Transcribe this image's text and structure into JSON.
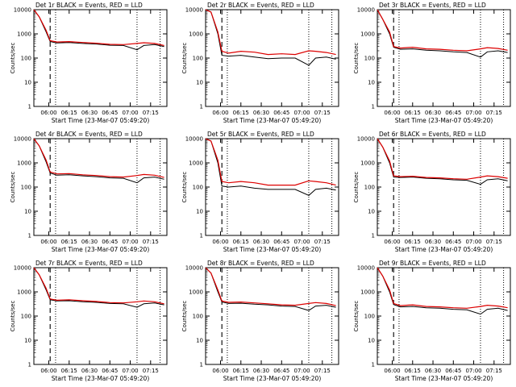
{
  "figure": {
    "xlabel": "Start Time (23-Mar-07 05:49:20)",
    "ylabel": "Counts/sec"
  },
  "colors": {
    "events": "#000000",
    "lld": "#dd0000"
  },
  "shared_axes": {
    "x_ticks": [
      "06:00",
      "06:15",
      "06:30",
      "06:45",
      "07:00",
      "07:15"
    ],
    "y_ticks": [
      "1",
      "10",
      "100",
      "1000",
      "10000"
    ],
    "ylim": [
      1,
      10000
    ],
    "y_scale": "log"
  },
  "chart_data": [
    {
      "type": "line",
      "title": "Det 1r BLACK = Events, RED = LLD",
      "x": [
        "05:49",
        "05:53",
        "05:58",
        "06:01",
        "06:06",
        "06:15",
        "06:25",
        "06:35",
        "06:45",
        "06:55",
        "07:05",
        "07:10",
        "07:18",
        "07:25"
      ],
      "series": [
        {
          "name": "Events",
          "values": [
            10000,
            5000,
            1200,
            480,
            420,
            440,
            400,
            380,
            340,
            330,
            220,
            330,
            360,
            300
          ]
        },
        {
          "name": "LLD",
          "values": [
            10000,
            5000,
            1400,
            520,
            460,
            480,
            440,
            410,
            370,
            360,
            400,
            430,
            400,
            330
          ]
        }
      ]
    },
    {
      "type": "line",
      "title": "Det 2r BLACK = Events, RED = LLD",
      "x": [
        "05:49",
        "05:53",
        "05:58",
        "06:01",
        "06:06",
        "06:15",
        "06:25",
        "06:35",
        "06:45",
        "06:55",
        "07:05",
        "07:10",
        "07:18",
        "07:25"
      ],
      "series": [
        {
          "name": "Events",
          "values": [
            10000,
            8000,
            1000,
            130,
            120,
            130,
            110,
            95,
            100,
            100,
            50,
            100,
            110,
            90
          ]
        },
        {
          "name": "LLD",
          "values": [
            10000,
            8000,
            1200,
            190,
            160,
            190,
            175,
            140,
            150,
            140,
            200,
            190,
            170,
            140
          ]
        }
      ]
    },
    {
      "type": "line",
      "title": "Det 3r BLACK = Events, RED = LLD",
      "x": [
        "05:49",
        "05:53",
        "05:58",
        "06:01",
        "06:06",
        "06:15",
        "06:25",
        "06:35",
        "06:45",
        "06:55",
        "07:05",
        "07:10",
        "07:18",
        "07:25"
      ],
      "series": [
        {
          "name": "Events",
          "values": [
            10000,
            4000,
            1000,
            280,
            230,
            240,
            210,
            200,
            180,
            170,
            110,
            180,
            200,
            170
          ]
        },
        {
          "name": "LLD",
          "values": [
            10000,
            4000,
            1200,
            300,
            260,
            280,
            240,
            230,
            210,
            200,
            240,
            270,
            250,
            210
          ]
        }
      ]
    },
    {
      "type": "line",
      "title": "Det 4r BLACK = Events, RED = LLD",
      "x": [
        "05:49",
        "05:53",
        "05:58",
        "06:01",
        "06:06",
        "06:15",
        "06:25",
        "06:35",
        "06:45",
        "06:55",
        "07:05",
        "07:10",
        "07:18",
        "07:25"
      ],
      "series": [
        {
          "name": "Events",
          "values": [
            10000,
            5000,
            1100,
            380,
            310,
            320,
            290,
            270,
            240,
            230,
            150,
            240,
            260,
            210
          ]
        },
        {
          "name": "LLD",
          "values": [
            10000,
            5000,
            1300,
            420,
            350,
            360,
            320,
            300,
            270,
            260,
            300,
            330,
            310,
            250
          ]
        }
      ]
    },
    {
      "type": "line",
      "title": "Det 5r BLACK = Events, RED = LLD",
      "x": [
        "05:49",
        "05:53",
        "05:58",
        "06:01",
        "06:06",
        "06:15",
        "06:25",
        "06:35",
        "06:45",
        "06:55",
        "07:05",
        "07:10",
        "07:18",
        "07:25"
      ],
      "series": [
        {
          "name": "Events",
          "values": [
            10000,
            8000,
            1000,
            110,
            100,
            110,
            90,
            80,
            80,
            80,
            45,
            80,
            90,
            75
          ]
        },
        {
          "name": "LLD",
          "values": [
            10000,
            8000,
            1300,
            170,
            150,
            170,
            150,
            120,
            120,
            120,
            180,
            170,
            150,
            120
          ]
        }
      ]
    },
    {
      "type": "line",
      "title": "Det 6r BLACK = Events, RED = LLD",
      "x": [
        "05:49",
        "05:53",
        "05:58",
        "06:01",
        "06:06",
        "06:15",
        "06:25",
        "06:35",
        "06:45",
        "06:55",
        "07:05",
        "07:10",
        "07:18",
        "07:25"
      ],
      "series": [
        {
          "name": "Events",
          "values": [
            10000,
            4500,
            1000,
            260,
            250,
            260,
            230,
            220,
            200,
            190,
            130,
            200,
            220,
            180
          ]
        },
        {
          "name": "LLD",
          "values": [
            10000,
            4500,
            1200,
            290,
            270,
            280,
            250,
            240,
            220,
            210,
            260,
            290,
            270,
            230
          ]
        }
      ]
    },
    {
      "type": "line",
      "title": "Det 7r BLACK = Events, RED = LLD",
      "x": [
        "05:49",
        "05:53",
        "05:58",
        "06:01",
        "06:06",
        "06:15",
        "06:25",
        "06:35",
        "06:45",
        "06:55",
        "07:05",
        "07:10",
        "07:18",
        "07:25"
      ],
      "series": [
        {
          "name": "Events",
          "values": [
            10000,
            5000,
            1200,
            470,
            420,
            430,
            390,
            370,
            330,
            320,
            230,
            320,
            350,
            290
          ]
        },
        {
          "name": "LLD",
          "values": [
            10000,
            5000,
            1400,
            510,
            450,
            470,
            430,
            400,
            360,
            350,
            390,
            420,
            390,
            320
          ]
        }
      ]
    },
    {
      "type": "line",
      "title": "Det 8r BLACK = Events, RED = LLD",
      "x": [
        "05:49",
        "05:53",
        "05:58",
        "06:01",
        "06:06",
        "06:15",
        "06:25",
        "06:35",
        "06:45",
        "06:55",
        "07:05",
        "07:10",
        "07:18",
        "07:25"
      ],
      "series": [
        {
          "name": "Events",
          "values": [
            10000,
            6000,
            1000,
            380,
            330,
            340,
            310,
            290,
            260,
            250,
            170,
            260,
            280,
            230
          ]
        },
        {
          "name": "LLD",
          "values": [
            10000,
            6000,
            1200,
            420,
            370,
            380,
            350,
            320,
            290,
            280,
            330,
            360,
            330,
            270
          ]
        }
      ]
    },
    {
      "type": "line",
      "title": "Det 9r BLACK = Events, RED = LLD",
      "x": [
        "05:49",
        "05:53",
        "05:58",
        "06:01",
        "06:06",
        "06:15",
        "06:25",
        "06:35",
        "06:45",
        "06:55",
        "07:05",
        "07:10",
        "07:18",
        "07:25"
      ],
      "series": [
        {
          "name": "Events",
          "values": [
            10000,
            4500,
            1000,
            300,
            240,
            250,
            220,
            210,
            190,
            180,
            120,
            190,
            210,
            170
          ]
        },
        {
          "name": "LLD",
          "values": [
            10000,
            4500,
            1200,
            330,
            270,
            290,
            250,
            240,
            220,
            210,
            250,
            280,
            260,
            220
          ]
        }
      ]
    }
  ]
}
